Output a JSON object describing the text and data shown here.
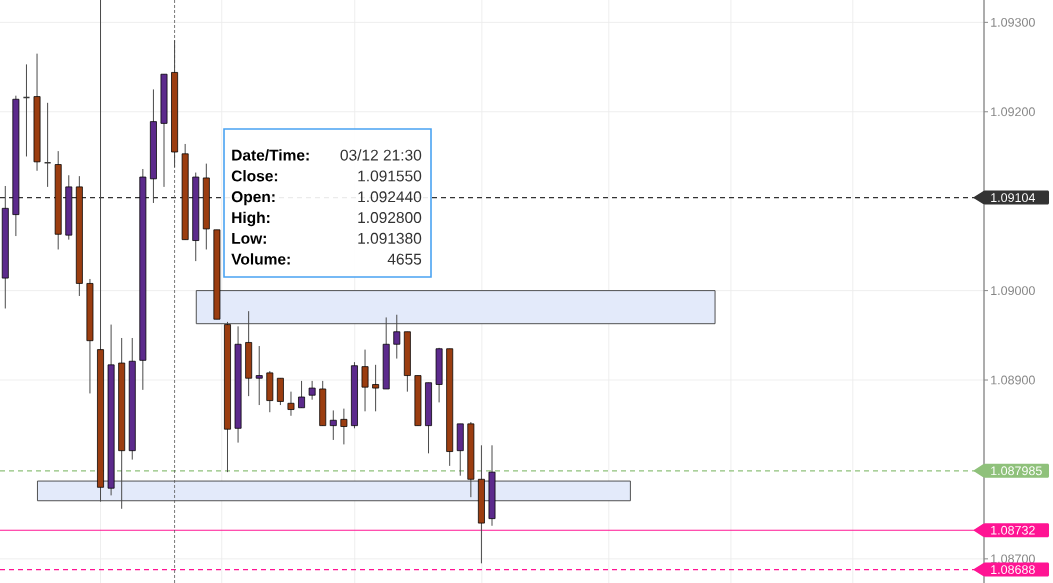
{
  "chart_data": {
    "type": "candlestick",
    "categories": [
      null,
      null,
      null,
      null,
      null,
      null,
      null,
      null,
      null,
      null,
      null,
      null,
      null,
      null,
      null,
      null,
      null,
      null,
      null,
      null,
      null,
      null,
      null,
      null,
      null,
      null,
      null,
      null,
      null,
      null,
      null,
      null,
      null,
      null,
      null,
      null,
      null,
      null,
      null,
      null,
      null,
      null,
      null,
      null,
      null,
      null,
      null,
      null,
      null,
      null,
      null,
      null,
      null,
      null,
      null,
      null,
      null,
      null,
      null,
      null,
      null,
      null,
      null,
      null,
      null,
      null,
      null,
      null,
      null,
      null,
      null,
      null,
      null,
      null,
      null,
      null,
      null,
      null,
      null,
      null,
      null,
      null,
      null,
      null,
      null,
      null,
      null,
      null,
      null,
      null,
      null,
      null,
      null
    ],
    "ohlc": [
      [
        1.09014,
        1.09117,
        1.0898,
        1.09092
      ],
      [
        1.09085,
        1.09218,
        1.09061,
        1.09214
      ],
      [
        1.09216,
        1.09253,
        1.0915,
        1.09216
      ],
      [
        1.09217,
        1.09265,
        1.09134,
        1.09144
      ],
      [
        1.09143,
        1.0921,
        1.09116,
        1.09143
      ],
      [
        1.09141,
        1.09156,
        1.09046,
        1.09063
      ],
      [
        1.09062,
        1.09129,
        1.09057,
        1.09116
      ],
      [
        1.09116,
        1.09128,
        1.08994,
        1.09008
      ],
      [
        1.09008,
        1.09013,
        1.08885,
        1.08944
      ],
      [
        1.08934,
        1.09325,
        1.08764,
        1.0878
      ],
      [
        1.08779,
        1.08962,
        1.08771,
        1.08917
      ],
      [
        1.08919,
        1.08947,
        1.08756,
        1.08821
      ],
      [
        1.08821,
        1.08947,
        1.08811,
        1.08921
      ],
      [
        1.08922,
        1.09136,
        1.08889,
        1.09127
      ],
      [
        1.09125,
        1.09225,
        1.09098,
        1.09189
      ],
      [
        1.09187,
        1.09242,
        1.09116,
        1.09242
      ],
      [
        1.09244,
        1.0928,
        1.09138,
        1.09155
      ],
      [
        1.09153,
        1.09164,
        1.09057,
        1.09057
      ],
      [
        1.09056,
        1.09132,
        1.09033,
        1.09127
      ],
      [
        1.09126,
        1.09142,
        1.09046,
        1.09069
      ],
      [
        1.09068,
        1.09068,
        1.08968,
        1.08968
      ],
      [
        1.08962,
        1.08965,
        1.08797,
        1.08845
      ],
      [
        1.08846,
        1.0896,
        1.0883,
        1.0894
      ],
      [
        1.08942,
        1.08977,
        1.08882,
        1.08902
      ],
      [
        1.08902,
        1.08938,
        1.08872,
        1.08905
      ],
      [
        1.08908,
        1.0891,
        1.08864,
        1.08877
      ],
      [
        1.08902,
        1.08902,
        1.08872,
        1.08876
      ],
      [
        1.08874,
        1.08887,
        1.0886,
        1.08867
      ],
      [
        1.08869,
        1.08899,
        1.08869,
        1.08881
      ],
      [
        1.08883,
        1.08899,
        1.08878,
        1.08891
      ],
      [
        1.0889,
        1.08899,
        1.08849,
        1.08849
      ],
      [
        1.08849,
        1.08866,
        1.08833,
        1.08855
      ],
      [
        1.08856,
        1.08868,
        1.08828,
        1.08848
      ],
      [
        1.08849,
        1.0892,
        1.08846,
        1.08916
      ],
      [
        1.08915,
        1.08934,
        1.08865,
        1.08892
      ],
      [
        1.08895,
        1.08917,
        1.08865,
        1.08891
      ],
      [
        1.0889,
        1.0897,
        1.0889,
        1.0894
      ],
      [
        1.0894,
        1.08973,
        1.08924,
        1.08954
      ],
      [
        1.08954,
        1.08954,
        1.08887,
        1.08905
      ],
      [
        1.08905,
        1.08905,
        1.08849,
        1.08849
      ],
      [
        1.08849,
        1.08897,
        1.08818,
        1.08897
      ],
      [
        1.08895,
        1.08936,
        1.08875,
        1.08935
      ],
      [
        1.08935,
        1.08935,
        1.08804,
        1.0882
      ],
      [
        1.08821,
        1.08851,
        1.08793,
        1.08851
      ],
      [
        1.08851,
        1.08853,
        1.08769,
        1.08789
      ],
      [
        1.08789,
        1.08827,
        1.08695,
        1.0874
      ],
      [
        1.08745,
        1.08827,
        1.08737,
        1.08797
      ],
      null,
      null,
      null,
      null,
      null,
      null,
      null,
      null,
      null,
      null,
      null,
      null,
      null,
      null,
      null,
      null,
      null,
      null,
      null,
      null,
      null,
      null,
      null,
      null,
      null,
      null,
      null,
      null,
      null,
      null,
      null,
      null,
      null,
      null,
      null,
      null,
      null,
      null,
      null,
      null,
      null,
      null,
      null,
      null,
      null,
      null
    ],
    "colors": [
      "#5c2a8c",
      "#5c2a8c",
      "#3a3a3a",
      "#9b3d10",
      "#3a3a3a",
      "#9b3d10",
      "#5c2a8c",
      "#9b3d10",
      "#9b3d10",
      "#9b3d10",
      "#5c2a8c",
      "#9b3d10",
      "#5c2a8c",
      "#5c2a8c",
      "#5c2a8c",
      "#5c2a8c",
      "#9b3d10",
      "#9b3d10",
      "#5c2a8c",
      "#9b3d10",
      "#9b3d10",
      "#9b3d10",
      "#5c2a8c",
      "#9b3d10",
      "#5c2a8c",
      "#9b3d10",
      "#9b3d10",
      "#9b3d10",
      "#5c2a8c",
      "#5c2a8c",
      "#9b3d10",
      "#5c2a8c",
      "#9b3d10",
      "#5c2a8c",
      "#9b3d10",
      "#9b3d10",
      "#5c2a8c",
      "#5c2a8c",
      "#9b3d10",
      "#9b3d10",
      "#5c2a8c",
      "#5c2a8c",
      "#9b3d10",
      "#5c2a8c",
      "#9b3d10",
      "#9b3d10",
      "#5c2a8c",
      null,
      null,
      null,
      null,
      null,
      null,
      null,
      null,
      null,
      null,
      null,
      null,
      null,
      null,
      null,
      null,
      null,
      null,
      null,
      null,
      null,
      null,
      null,
      null,
      null,
      null,
      null,
      null,
      null,
      null,
      null,
      null,
      null,
      null,
      null,
      null,
      null,
      null,
      null,
      null,
      null,
      null,
      null,
      null,
      null,
      null
    ],
    "ylim": [
      1.08673,
      1.09325
    ],
    "yticks": [
      {
        "value": 1.087,
        "label": "1.08700"
      },
      {
        "value": 1.089,
        "label": "1.08900"
      },
      {
        "value": 1.09,
        "label": "1.09000"
      },
      {
        "value": 1.092,
        "label": "1.09200"
      },
      {
        "value": 1.093,
        "label": "1.09300"
      }
    ],
    "grid": true,
    "tick_labels": "y",
    "ref_lines": [
      {
        "axis": "y",
        "value": 1.09104,
        "label": "1.09104",
        "color": "#333333",
        "line_style": "dashed"
      },
      {
        "axis": "y",
        "value": 1.087985,
        "label": "1.087985",
        "color": "#8fc17b",
        "line_style": "dashed"
      },
      {
        "axis": "y",
        "value": 1.08732,
        "label": "1.08732",
        "color": "#ff1493",
        "line_style": "solid"
      },
      {
        "axis": "y",
        "value": 1.08688,
        "label": "1.08688",
        "color": "#ff1493",
        "line_style": "dashed"
      }
    ],
    "bands": [
      {
        "axis": "y",
        "from": 1.08963,
        "to": 1.09,
        "color": "#e3eafa"
      },
      {
        "axis": "y",
        "from": 1.08765,
        "to": 1.08787,
        "color": "#e3eafa"
      }
    ],
    "annotations": [
      "Date/Time:",
      "03/12 21:30",
      "Close:",
      "1.091550",
      "Open:",
      "1.092440",
      "High:",
      "1.092800",
      "Low:",
      "1.091380",
      "Volume:",
      "4655"
    ]
  }
}
